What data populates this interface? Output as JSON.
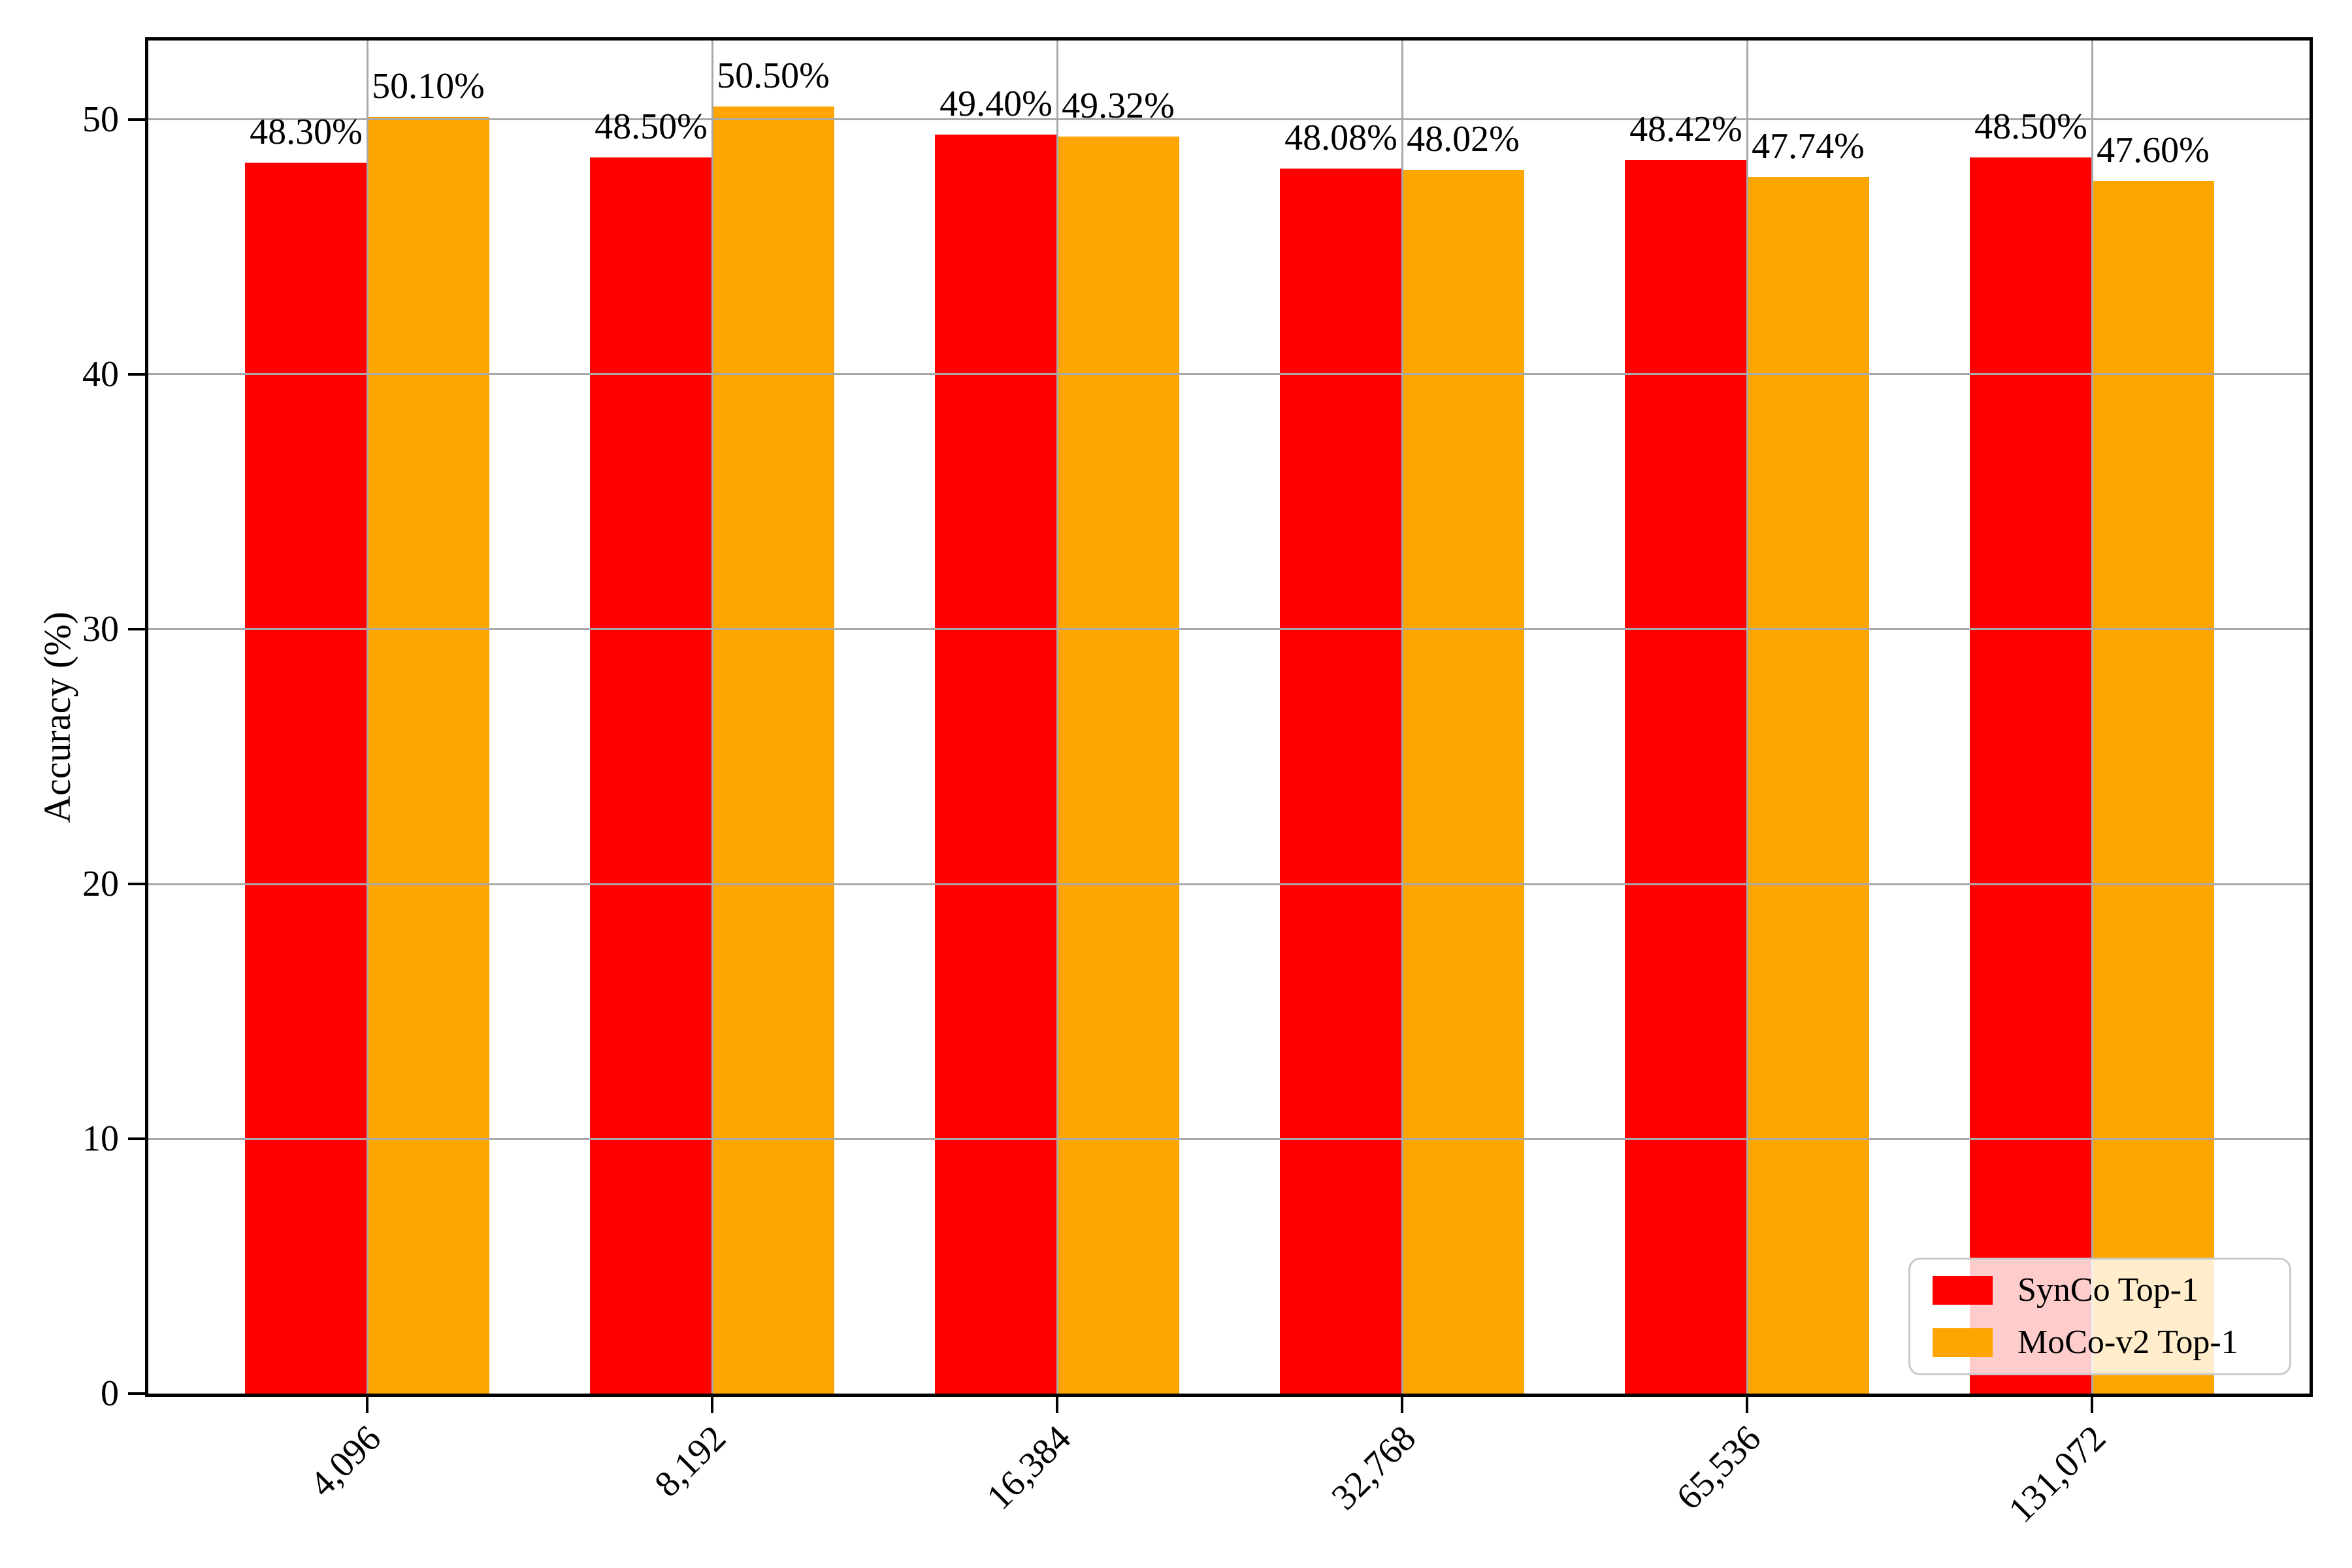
{
  "chart_data": {
    "type": "bar",
    "title": "",
    "xlabel": "",
    "ylabel": "Accuracy (%)",
    "categories": [
      "4,096",
      "8,192",
      "16,384",
      "32,768",
      "65,536",
      "131,072"
    ],
    "series": [
      {
        "name": "SynCo Top-1",
        "color": "#ff0000",
        "values": [
          48.3,
          48.5,
          49.4,
          48.08,
          48.42,
          48.5
        ],
        "value_labels": [
          "48.30%",
          "48.50%",
          "49.40%",
          "48.08%",
          "48.42%",
          "48.50%"
        ]
      },
      {
        "name": "MoCo-v2 Top-1",
        "color": "#ffa500",
        "values": [
          50.1,
          50.5,
          49.32,
          48.02,
          47.74,
          47.6
        ],
        "value_labels": [
          "50.10%",
          "50.50%",
          "49.32%",
          "48.02%",
          "47.74%",
          "47.60%"
        ]
      }
    ],
    "yticks": [
      0,
      10,
      20,
      30,
      40,
      50
    ],
    "ylim": [
      0,
      53.1
    ],
    "grid": true,
    "grid_color": "#a9a9a9",
    "legend_position": "lower right"
  }
}
